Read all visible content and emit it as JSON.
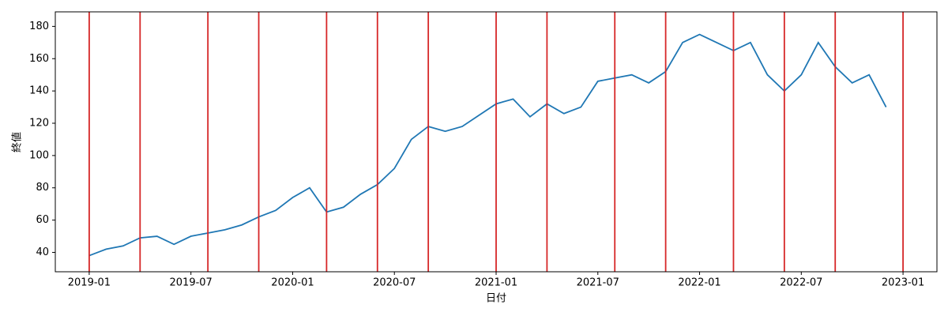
{
  "chart_data": {
    "type": "line",
    "x_label": "日付",
    "y_label": "終値",
    "x": [
      "2019-01",
      "2019-02",
      "2019-03",
      "2019-04",
      "2019-05",
      "2019-06",
      "2019-07",
      "2019-08",
      "2019-09",
      "2019-10",
      "2019-11",
      "2019-12",
      "2020-01",
      "2020-02",
      "2020-03",
      "2020-04",
      "2020-05",
      "2020-06",
      "2020-07",
      "2020-08",
      "2020-09",
      "2020-10",
      "2020-11",
      "2020-12",
      "2021-01",
      "2021-02",
      "2021-03",
      "2021-04",
      "2021-05",
      "2021-06",
      "2021-07",
      "2021-08",
      "2021-09",
      "2021-10",
      "2021-11",
      "2021-12",
      "2022-01",
      "2022-02",
      "2022-03",
      "2022-04",
      "2022-05",
      "2022-06",
      "2022-07",
      "2022-08",
      "2022-09",
      "2022-10",
      "2022-11",
      "2022-12"
    ],
    "series": [
      {
        "color": "#1f77b4",
        "values": [
          38,
          42,
          44,
          49,
          50,
          45,
          50,
          52,
          54,
          57,
          62,
          66,
          74,
          80,
          65,
          68,
          76,
          82,
          92,
          110,
          118,
          115,
          118,
          125,
          132,
          135,
          124,
          132,
          126,
          130,
          146,
          148,
          150,
          145,
          152,
          170,
          175,
          170,
          165,
          170,
          150,
          140,
          150,
          170,
          155,
          145,
          150,
          130
        ]
      }
    ],
    "vlines": [
      "2019-01",
      "2019-04",
      "2019-08",
      "2019-11",
      "2020-03",
      "2020-06",
      "2020-09",
      "2021-01",
      "2021-04",
      "2021-08",
      "2021-11",
      "2022-03",
      "2022-06",
      "2022-09",
      "2023-01"
    ],
    "vline_color": "#d62728",
    "xlim": [
      "2018-11",
      "2023-03"
    ],
    "xticks": [
      "2019-01",
      "2019-07",
      "2020-01",
      "2020-07",
      "2021-01",
      "2021-07",
      "2022-01",
      "2022-07",
      "2023-01"
    ],
    "ylim": [
      28,
      189
    ],
    "yticks": [
      40,
      60,
      80,
      100,
      120,
      140,
      160,
      180
    ]
  }
}
